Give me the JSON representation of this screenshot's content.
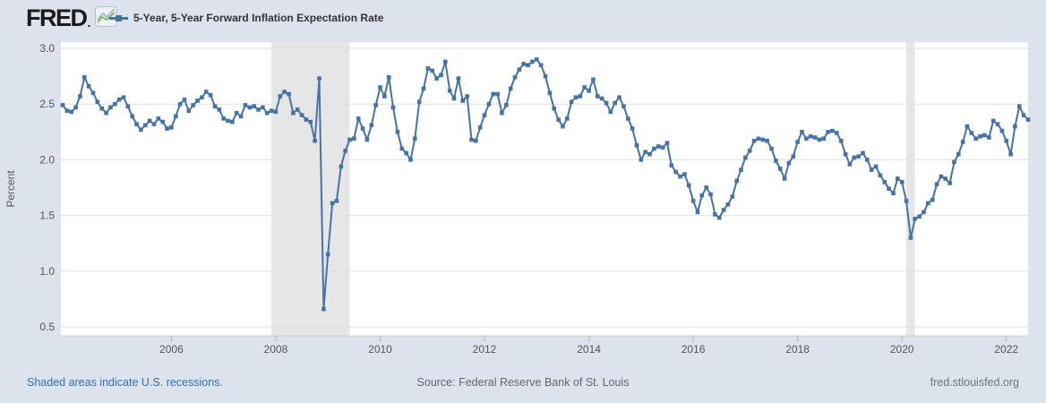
{
  "header": {
    "logo_text": "FRED",
    "logo_mark": ".",
    "legend": {
      "label": "5-Year, 5-Year Forward Inflation Expectation Rate",
      "marker_color": "#4572a7"
    }
  },
  "footer": {
    "recession_note": "Shaded areas indicate U.S. recessions.",
    "source": "Source: Federal Reserve Bank of St. Louis",
    "site": "fred.stlouisfed.org"
  },
  "colors": {
    "page_background": "#dce3ec",
    "plot_background": "#ffffff",
    "line": "#4572a7",
    "recession_band": "#e6e6e6",
    "gridline": "#e0e0e0",
    "axis_line": "#c9ced4",
    "tick_text": "#555555",
    "link_blue": "#3a6ea5"
  },
  "chart_data": {
    "type": "line",
    "title": "5-Year, 5-Year Forward Inflation Expectation Rate",
    "ylabel": "Percent",
    "xlabel": "",
    "ylim": [
      0.5,
      3.0
    ],
    "yticks": [
      3.0,
      2.5,
      2.0,
      1.5,
      1.0,
      0.5
    ],
    "xticks": [
      2006,
      2008,
      2010,
      2012,
      2014,
      2016,
      2018,
      2020,
      2022
    ],
    "grid": true,
    "legend_position": "top-left",
    "marker": "square",
    "frequency": "monthly",
    "start_date": "2003-12",
    "end_date": "2022-06",
    "recessions": [
      {
        "start": "2007-12",
        "end": "2009-06"
      },
      {
        "start": "2020-02",
        "end": "2020-04"
      }
    ],
    "values": [
      2.49,
      2.44,
      2.43,
      2.47,
      2.57,
      2.74,
      2.66,
      2.6,
      2.52,
      2.46,
      2.42,
      2.47,
      2.5,
      2.54,
      2.56,
      2.48,
      2.39,
      2.32,
      2.27,
      2.31,
      2.35,
      2.32,
      2.37,
      2.34,
      2.28,
      2.29,
      2.39,
      2.5,
      2.54,
      2.44,
      2.49,
      2.53,
      2.56,
      2.61,
      2.58,
      2.48,
      2.45,
      2.37,
      2.35,
      2.34,
      2.42,
      2.39,
      2.49,
      2.47,
      2.48,
      2.45,
      2.47,
      2.42,
      2.44,
      2.43,
      2.57,
      2.61,
      2.59,
      2.42,
      2.45,
      2.4,
      2.36,
      2.34,
      2.17,
      2.73,
      0.66,
      1.15,
      1.61,
      1.63,
      1.94,
      2.08,
      2.18,
      2.19,
      2.37,
      2.28,
      2.18,
      2.31,
      2.49,
      2.65,
      2.57,
      2.74,
      2.47,
      2.25,
      2.1,
      2.06,
      2.0,
      2.19,
      2.52,
      2.64,
      2.82,
      2.8,
      2.73,
      2.76,
      2.88,
      2.62,
      2.55,
      2.73,
      2.53,
      2.57,
      2.18,
      2.17,
      2.29,
      2.4,
      2.5,
      2.59,
      2.59,
      2.42,
      2.49,
      2.64,
      2.74,
      2.81,
      2.86,
      2.85,
      2.88,
      2.9,
      2.85,
      2.75,
      2.6,
      2.46,
      2.36,
      2.3,
      2.37,
      2.52,
      2.56,
      2.57,
      2.65,
      2.62,
      2.72,
      2.57,
      2.55,
      2.51,
      2.43,
      2.51,
      2.56,
      2.48,
      2.37,
      2.28,
      2.13,
      2.0,
      2.07,
      2.05,
      2.1,
      2.12,
      2.11,
      2.15,
      1.95,
      1.89,
      1.85,
      1.87,
      1.77,
      1.63,
      1.53,
      1.68,
      1.75,
      1.69,
      1.51,
      1.48,
      1.55,
      1.6,
      1.67,
      1.81,
      1.91,
      2.02,
      2.08,
      2.17,
      2.19,
      2.18,
      2.17,
      2.1,
      1.99,
      1.92,
      1.83,
      1.97,
      2.03,
      2.16,
      2.25,
      2.19,
      2.21,
      2.2,
      2.18,
      2.19,
      2.25,
      2.26,
      2.24,
      2.17,
      2.05,
      1.96,
      2.02,
      2.03,
      2.06,
      2.0,
      1.91,
      1.94,
      1.86,
      1.8,
      1.74,
      1.7,
      1.83,
      1.8,
      1.63,
      1.3,
      1.47,
      1.49,
      1.53,
      1.61,
      1.64,
      1.78,
      1.85,
      1.83,
      1.79,
      1.98,
      2.05,
      2.16,
      2.3,
      2.24,
      2.19,
      2.21,
      2.22,
      2.2,
      2.35,
      2.32,
      2.26,
      2.17,
      2.05,
      2.3,
      2.48,
      2.4,
      2.36
    ]
  }
}
